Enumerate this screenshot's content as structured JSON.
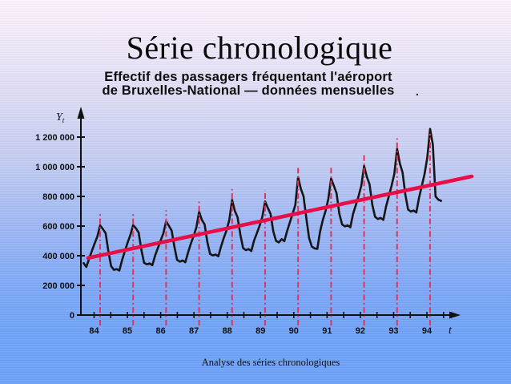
{
  "slide": {
    "title": "Série chronologique",
    "subtitle_line1": "Effectif des passagers fréquentant l'aéroport",
    "subtitle_line2": "de Bruxelles-National — données mensuelles",
    "stray_dot": ".",
    "footer": "Analyse des séries chronologiques"
  },
  "chart_data": {
    "type": "line",
    "title": "Effectif des passagers fréquentant l'aéroport de Bruxelles-National — données mensuelles",
    "xlabel": "t",
    "ylabel": "Y",
    "ylabel_subscript": "t",
    "frequency": "monthly",
    "x_tick_labels": [
      "84",
      "85",
      "86",
      "87",
      "88",
      "89",
      "90",
      "91",
      "92",
      "93",
      "94"
    ],
    "y_ticks": [
      {
        "value": 0,
        "label": "0"
      },
      {
        "value": 200000,
        "label": "200 000"
      },
      {
        "value": 400000,
        "label": "400 000"
      },
      {
        "value": 600000,
        "label": "600 000"
      },
      {
        "value": 800000,
        "label": "800 000"
      },
      {
        "value": 1000000,
        "label": "1 000 000"
      },
      {
        "value": 1200000,
        "label": "1 200 000"
      }
    ],
    "ylim": [
      0,
      1300000
    ],
    "x_range_years": [
      1984,
      1995
    ],
    "grid": false,
    "legend": "none",
    "series": [
      {
        "name": "passagers mensuels",
        "start": "1984-01",
        "values": [
          350000,
          325000,
          380000,
          432000,
          482000,
          530000,
          605000,
          580000,
          552000,
          430000,
          330000,
          305000,
          310000,
          300000,
          372000,
          430000,
          488000,
          540000,
          606000,
          586000,
          556000,
          440000,
          352000,
          342000,
          348000,
          336000,
          402000,
          452000,
          502000,
          552000,
          632000,
          602000,
          570000,
          462000,
          372000,
          360000,
          368000,
          356000,
          424000,
          482000,
          532000,
          592000,
          696000,
          642000,
          610000,
          492000,
          412000,
          402000,
          408000,
          396000,
          462000,
          522000,
          572000,
          642000,
          776000,
          702000,
          660000,
          542000,
          452000,
          438000,
          445000,
          432000,
          502000,
          552000,
          602000,
          662000,
          766000,
          722000,
          682000,
          562000,
          500000,
          490000,
          512000,
          498000,
          565000,
          625000,
          682000,
          742000,
          930000,
          852000,
          800000,
          652000,
          520000,
          462000,
          450000,
          446000,
          562000,
          642000,
          702000,
          782000,
          920000,
          872000,
          822000,
          682000,
          612000,
          598000,
          605000,
          592000,
          682000,
          742000,
          802000,
          872000,
          1005000,
          932000,
          882000,
          742000,
          662000,
          648000,
          655000,
          642000,
          732000,
          802000,
          872000,
          952000,
          1120000,
          1022000,
          962000,
          812000,
          712000,
          698000,
          705000,
          692000,
          792000,
          872000,
          952000,
          1062000,
          1255000,
          1150000,
          800000,
          778000,
          770000
        ]
      }
    ],
    "annual_peak_values": [
      605000,
      606000,
      632000,
      696000,
      776000,
      766000,
      930000,
      920000,
      1005000,
      1120000,
      1255000
    ],
    "seasonal_peak_markers": {
      "description": "ligne verticale tiret-point rouge au pic annuel (juillet)",
      "peak_month_index": 6,
      "style": "dash-dot",
      "color": "#e23358"
    },
    "trend_line": {
      "start_value": 385000,
      "end_value": 935000,
      "color": "#e60f48"
    },
    "colors": {
      "curve": "#151515",
      "axis": "#111111"
    }
  }
}
